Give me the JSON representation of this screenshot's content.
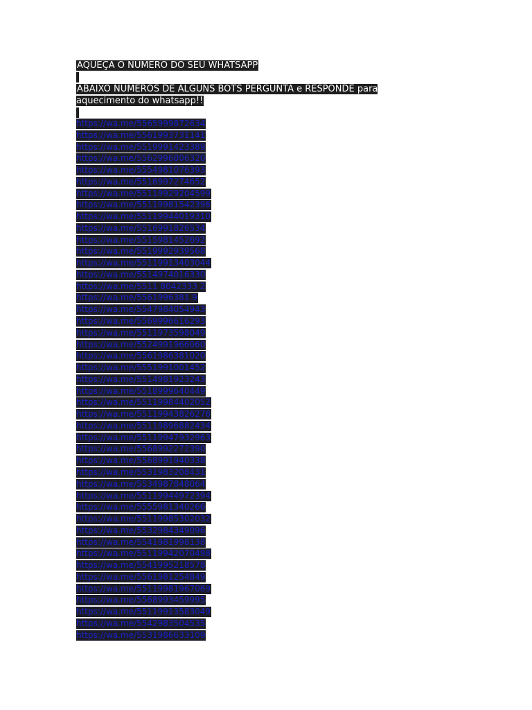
{
  "document": {
    "title": "AQUEÇA O NUMERO DO SEU WHATSAPP",
    "intro": "ABAIXO NUMEROS DE ALGUNS BOTS PERGUNTA e RESPONDE para aquecimento do whatsapp!!",
    "links": [
      "https://wa.me/5565999872634",
      "https://wa.me/5561993731141",
      "https://wa.me/5519991423389",
      "https://wa.me/5562996806320",
      "https://wa.me/5554981076393",
      "https://wa.me/5516997274652",
      "https://wa.me/55119929204599",
      "https://wa.me/55119981542396",
      "https://wa.me/55119944019310",
      "https://wa.me/5516991826534",
      "https://wa.me/5515981452692",
      "https://wa.me/5519992939568",
      "https://wa.me/55119913403044",
      "https://wa.me/5514974016330",
      "https://wa.me/5511 8042333 2",
      "https://wa.me/5561996381 9",
      "https://wa.me/5547984054943",
      "https://wa.me/5569996616293",
      "https://wa.me/5511973598049",
      "https://wa.me/5524991966060",
      "https://wa.me/5561986381020",
      "https://wa.me/5551991001452",
      "https://wa.me/5514981923243",
      "https://wa.me/5518999640449",
      "https://wa.me/55119984402052",
      "https://wa.me/55119943826276",
      "https://wa.me/55119896882434",
      "https://wa.me/55119947932963",
      "https://wa.me/5568992272390",
      "https://wa.me/5568991940338",
      "https://wa.me/5531983208431",
      "https://wa.me/5534987848064",
      "https://wa.me/55119944972394",
      "https://wa.me/5555981340266",
      "https://wa.me/55119985302032",
      "https://wa.me/5532984349096",
      "https://wa.me/5541981998138",
      "https://wa.me/55119942070498",
      "https://wa.me/5541995218578",
      "https://wa.me/5561981254849",
      "https://wa.me/55119981967069",
      "https://wa.me/5568993459995",
      "https://wa.me/55119913583049",
      "https://wa.me/5542983504535",
      "https://wa.me/5531986633109"
    ]
  },
  "colors": {
    "highlight_bg": "#1e1e1e",
    "link_text": "#1a22c8",
    "page_bg": "#ffffff"
  }
}
